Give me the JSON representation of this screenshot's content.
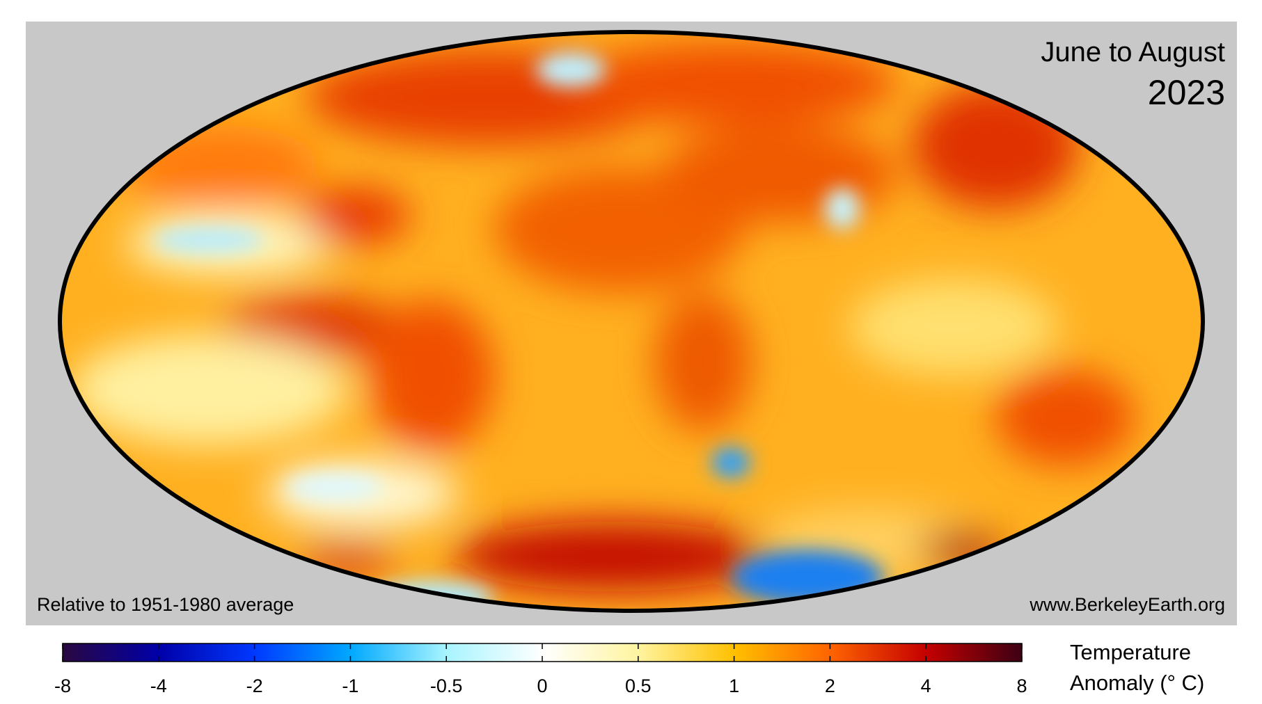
{
  "header": {
    "title": "June to August",
    "year": "2023"
  },
  "footnote": "Relative to 1951-1980 average",
  "source": "www.BerkeleyEarth.org",
  "colorbar": {
    "ticks": [
      -8,
      -4,
      -2,
      -1,
      -0.5,
      0,
      0.5,
      1,
      2,
      4,
      8
    ],
    "colors": [
      "#2a0840",
      "#0000a8",
      "#0038ff",
      "#00a8ff",
      "#a8f4ff",
      "#ffffff",
      "#fff4a0",
      "#ffc000",
      "#ff6400",
      "#c40000",
      "#3c0014"
    ],
    "label": [
      "Temperature",
      "Anomaly (° C)"
    ]
  }
}
